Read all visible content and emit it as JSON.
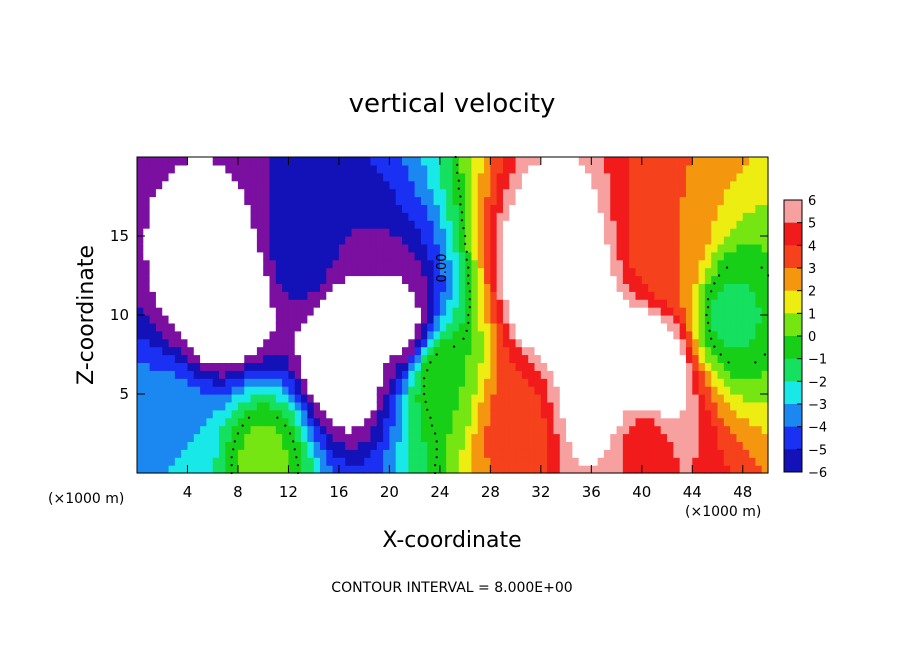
{
  "chart_data": {
    "type": "heatmap",
    "title": "vertical velocity",
    "xlabel": "X-coordinate",
    "ylabel": "Z-coordinate",
    "x_unit": "(×1000 m)",
    "xlim": [
      0,
      50
    ],
    "ylim": [
      0,
      20
    ],
    "x_ticks": [
      4,
      8,
      12,
      16,
      20,
      24,
      28,
      32,
      36,
      40,
      44,
      48
    ],
    "y_ticks": [
      5,
      10,
      15
    ],
    "colorbar": {
      "ticks": [
        6,
        5,
        4,
        3,
        2,
        1,
        0,
        -1,
        -2,
        -3,
        -4,
        -5,
        -6
      ],
      "range": [
        -6,
        6
      ]
    },
    "contour_label": "0.00",
    "contour_interval_text": "CONTOUR INTERVAL = 8.000E+00",
    "cells_description": "Updraft (positive, up to >6) region from x≈26–46, z≈0–17; downdraft (negative, below -6) region from x≈1–22, z≈0–18.",
    "features": [
      {
        "x": 7,
        "z": 11,
        "value": -9
      },
      {
        "x": 13,
        "z": 14,
        "value": -5
      },
      {
        "x": 16.5,
        "z": 7.5,
        "value": -9
      },
      {
        "x": 21,
        "z": 9.5,
        "value": -7
      },
      {
        "x": 33,
        "z": 12,
        "value": 10
      },
      {
        "x": 40.5,
        "z": 6.5,
        "value": 9
      },
      {
        "x": 36.5,
        "z": 5,
        "value": 8
      },
      {
        "x": 42,
        "z": 14,
        "value": 3.5
      },
      {
        "x": 30,
        "z": 3,
        "value": 4
      },
      {
        "x": 40,
        "z": 2,
        "value": 5
      },
      {
        "x": 3,
        "z": 2,
        "value": -2.5
      },
      {
        "x": 10,
        "z": 1,
        "value": 0.8
      },
      {
        "x": 24,
        "z": 6,
        "value": 0.5
      },
      {
        "x": 47,
        "z": 10,
        "value": -0.8
      }
    ],
    "colors": {
      "6": "#f7a0a0",
      "5": "#f21b1b",
      "4": "#f5411c",
      "3": "#f5960f",
      "2": "#eded12",
      "1": "#76e612",
      "0": "#18cf18",
      "-1": "#15e060",
      "-2": "#18e8e8",
      "-3": "#1a88f0",
      "-4": "#1a30f2",
      "-5": "#1212b8",
      "-6": "#7a0fa0",
      "over": "#ffffff",
      "under": "#ffffff"
    }
  }
}
